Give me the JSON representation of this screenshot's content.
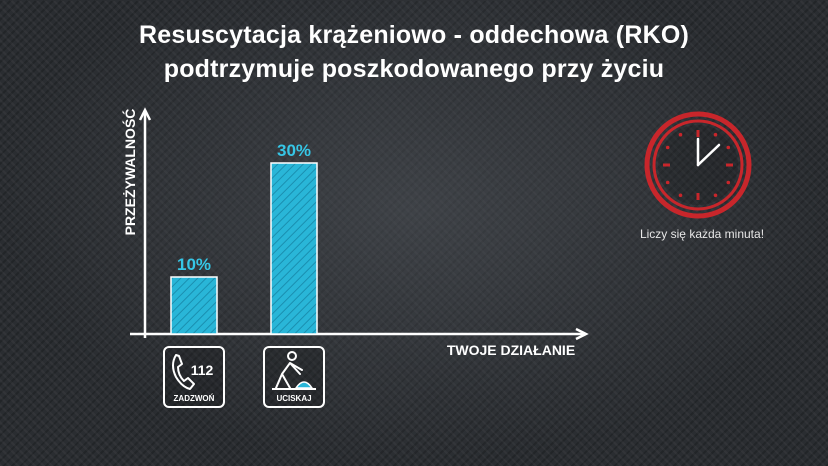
{
  "slide": {
    "title_line1": "Resuscytacja krążeniowo - oddechowa (RKO)",
    "title_line2": "podtrzymuje poszkodowanego przy życiu"
  },
  "clock": {
    "icon": "clock-icon",
    "caption": "Liczy się każda minuta!",
    "color": "#c8262b"
  },
  "chart_data": {
    "type": "bar",
    "categories": [
      "ZADZWOŃ",
      "UCISKAJ"
    ],
    "values": [
      10,
      30
    ],
    "data_labels": [
      "10%",
      "30%"
    ],
    "ylabel": "PRZEŻYWALNOŚĆ",
    "xlabel": "TWOJE DZIAŁANIE",
    "ylim": [
      0,
      40
    ],
    "grid": false,
    "bar_color": "#29b6d8",
    "label_color": "#36c6e6",
    "category_icons": [
      "phone-icon",
      "cpr-icon"
    ],
    "category_icon_text": [
      "112",
      ""
    ]
  }
}
